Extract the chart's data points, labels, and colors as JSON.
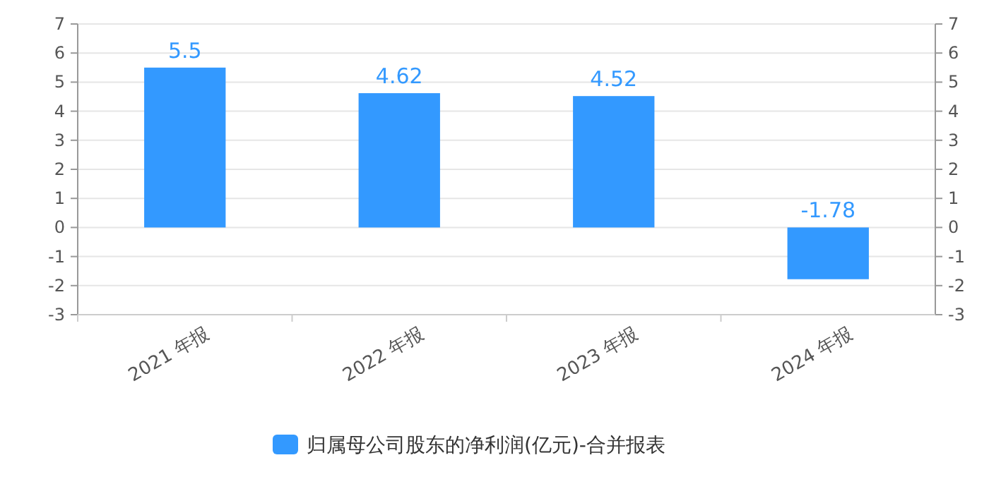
{
  "chart_data": {
    "type": "bar",
    "categories": [
      "2021 年报",
      "2022 年报",
      "2023 年报",
      "2024 年报"
    ],
    "series": [
      {
        "name": "归属母公司股东的净利润(亿元)-合并报表",
        "color": "#3399ff",
        "values": [
          5.5,
          4.62,
          4.52,
          -1.78
        ]
      }
    ],
    "ylim": [
      -3,
      7
    ],
    "yticks": [
      -3,
      -2,
      -1,
      0,
      1,
      2,
      3,
      4,
      5,
      6,
      7
    ],
    "y2lim": [
      -3,
      7
    ],
    "y2ticks": [
      -3,
      -2,
      -1,
      0,
      1,
      2,
      3,
      4,
      5,
      6,
      7
    ],
    "data_labels": true,
    "grid": "y",
    "legend": "bottom"
  }
}
